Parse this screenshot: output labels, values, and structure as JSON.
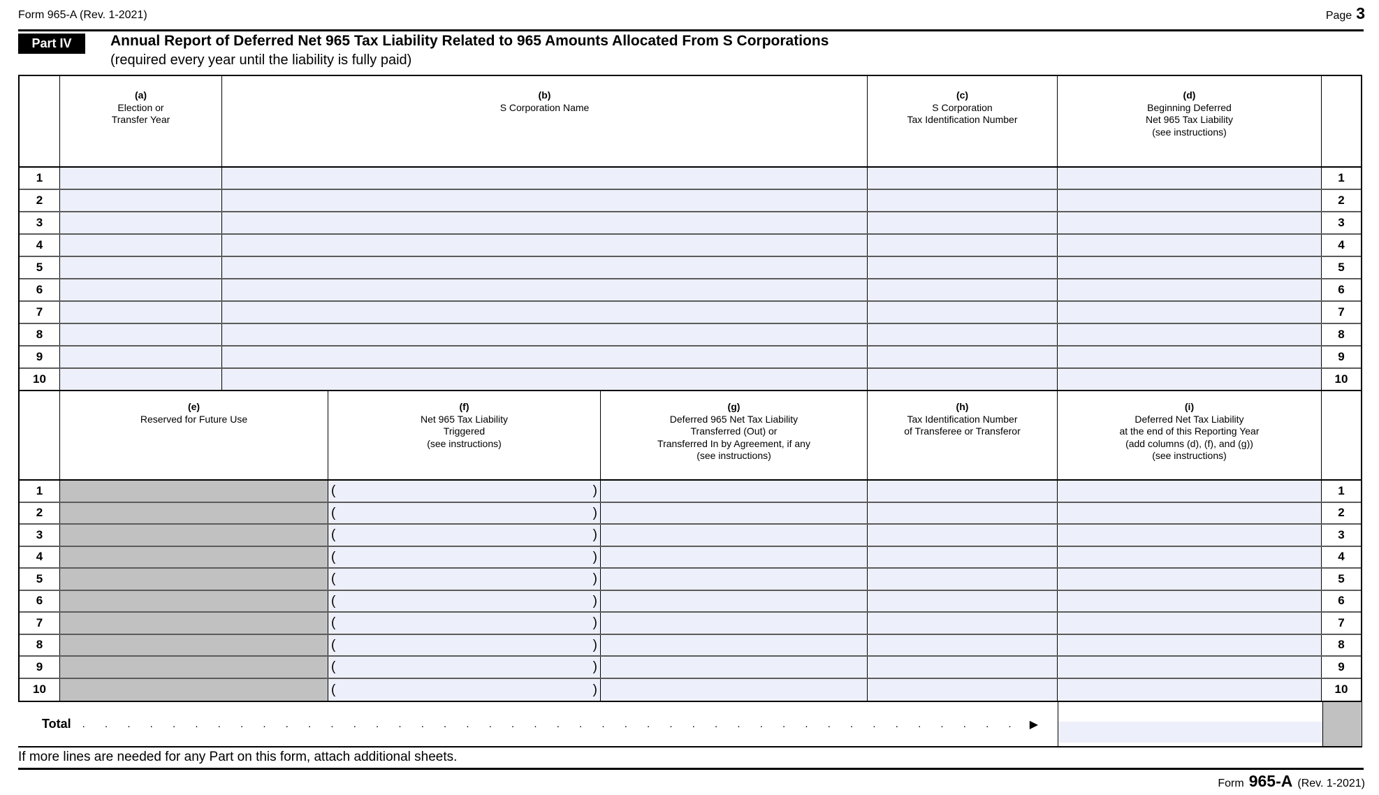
{
  "header": {
    "form_label": "Form 965-A (Rev. 1-2021)",
    "page_word": "Page",
    "page_number": "3"
  },
  "part4": {
    "badge": "Part IV",
    "title": "Annual Report of Deferred Net 965 Tax Liability Related to 965 Amounts Allocated From S Corporations",
    "subtitle": "(required every year until the liability is fully paid)"
  },
  "table_top": {
    "columns": [
      {
        "letter": "(a)",
        "label": "Election or\nTransfer Year"
      },
      {
        "letter": "(b)",
        "label": "S Corporation Name"
      },
      {
        "letter": "(c)",
        "label": "S Corporation\nTax Identification Number"
      },
      {
        "letter": "(d)",
        "label": "Beginning Deferred\nNet 965 Tax Liability\n(see instructions)"
      }
    ]
  },
  "table_bottom": {
    "columns": [
      {
        "letter": "(e)",
        "label": "Reserved for Future Use"
      },
      {
        "letter": "(f)",
        "label": "Net 965 Tax Liability\nTriggered\n(see instructions)"
      },
      {
        "letter": "(g)",
        "label": "Deferred 965 Net Tax Liability\nTransferred (Out) or\nTransferred In by Agreement, if any\n(see instructions)"
      },
      {
        "letter": "(h)",
        "label": "Tax Identification Number\nof Transferee or Transferor"
      },
      {
        "letter": "(i)",
        "label": "Deferred Net Tax Liability\nat the end of this Reporting Year\n(add columns (d), (f), and (g))\n(see instructions)"
      }
    ],
    "paren_open": "(",
    "paren_close": ")"
  },
  "row_numbers": [
    "1",
    "2",
    "3",
    "4",
    "5",
    "6",
    "7",
    "8",
    "9",
    "10"
  ],
  "total": {
    "label": "Total",
    "leader": ". . . . . . . . . . . . . . . . . . . . . . . . . . . . . . . . . . . . . . . . . . . .",
    "arrow": "▶"
  },
  "footnote": "If more lines are needed for any Part on this form, attach additional sheets.",
  "footer": {
    "form_word": "Form",
    "form_number": "965-A",
    "revision": "(Rev. 1-2021)"
  },
  "colors": {
    "field_blue": "#edf0fa",
    "reserved_gray": "#c1c1c1"
  }
}
